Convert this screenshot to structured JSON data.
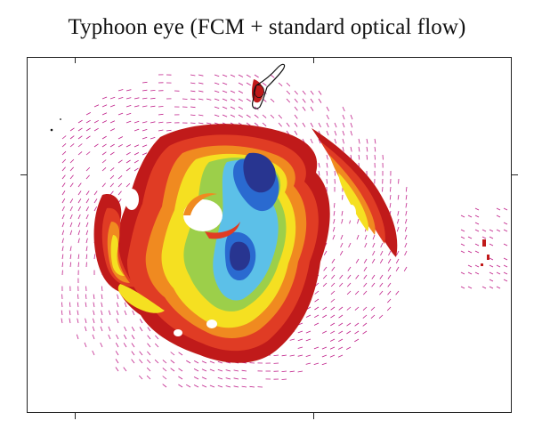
{
  "figure": {
    "title": "Typhoon eye (FCM + standard optical flow)"
  },
  "colors": {
    "frame": "#222222",
    "vector": "#c0208a",
    "dark_red": "#c01a1a",
    "red": "#e03c24",
    "orange": "#f08a20",
    "yellow": "#f5e021",
    "green": "#9ccf4a",
    "light_blue": "#5cc0e8",
    "blue": "#2a6ad0",
    "dark_blue": "#283590"
  }
}
